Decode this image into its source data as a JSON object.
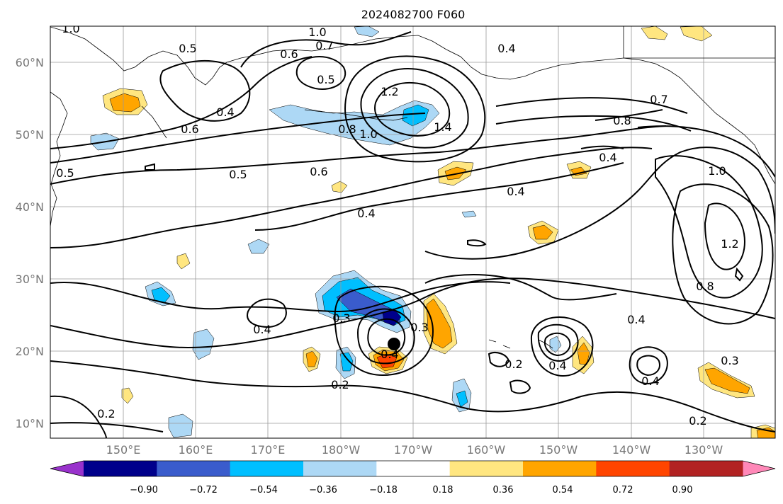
{
  "title": "2024082700 F060",
  "lat_ticks": [
    "60°N",
    "50°N",
    "40°N",
    "30°N",
    "20°N",
    "10°N"
  ],
  "lon_ticks": [
    "150°E",
    "160°E",
    "170°E",
    "180°W",
    "170°W",
    "160°W",
    "150°W",
    "140°W",
    "130°W"
  ],
  "colorbar": {
    "colors": [
      "#9932cc",
      "#00008b",
      "#3a5ccc",
      "#00bfff",
      "#add8f5",
      "#ffffff",
      "#ffe680",
      "#ffa500",
      "#ff4500",
      "#b22222",
      "#ff88b8"
    ],
    "ticks": [
      "−0.90",
      "−0.72",
      "−0.54",
      "−0.36",
      "−0.18",
      "0.18",
      "0.36",
      "0.54",
      "0.72",
      "0.90"
    ]
  },
  "contour_labels": [
    {
      "text": "1.0"
    },
    {
      "text": "0.5"
    },
    {
      "text": "1.0"
    },
    {
      "text": "0.7"
    },
    {
      "text": "0.6"
    },
    {
      "text": "0.5"
    },
    {
      "text": "0.4"
    },
    {
      "text": "0.6"
    },
    {
      "text": "0.8"
    },
    {
      "text": "1.2"
    },
    {
      "text": "1.0"
    },
    {
      "text": "1.4"
    },
    {
      "text": "0.7"
    },
    {
      "text": "0.8"
    },
    {
      "text": "0.4"
    },
    {
      "text": "0.5"
    },
    {
      "text": "0.6"
    },
    {
      "text": "0.4"
    },
    {
      "text": "0.4"
    },
    {
      "text": "1.0"
    },
    {
      "text": "1.2"
    },
    {
      "text": "0.8"
    },
    {
      "text": "0.3"
    },
    {
      "text": "0.4"
    },
    {
      "text": "0.4"
    },
    {
      "text": "0.3"
    },
    {
      "text": "0.2"
    },
    {
      "text": "0.2"
    },
    {
      "text": "0.4"
    },
    {
      "text": "0.4"
    },
    {
      "text": "0.4"
    },
    {
      "text": "0.3"
    },
    {
      "text": "0.2"
    },
    {
      "text": "0.2"
    },
    {
      "text": "0.4"
    },
    {
      "text": "0.5"
    }
  ]
}
